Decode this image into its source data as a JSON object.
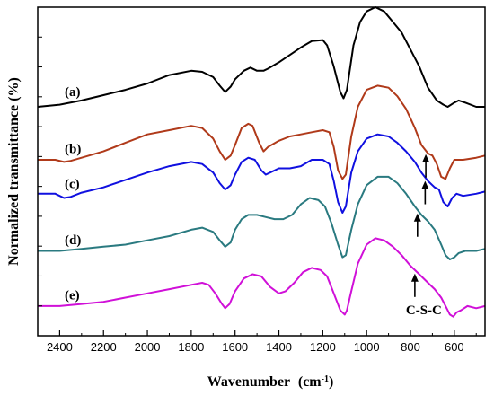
{
  "chart_data": {
    "type": "line",
    "title": "",
    "xlabel": "Wavenumber",
    "xlabel_unit": "(cm",
    "xlabel_unit_sup": "-1",
    "xlabel_unit_close": ")",
    "ylabel": "Normalized transmittance (%)",
    "xlim": [
      2500,
      460
    ],
    "x_reversed": true,
    "x_ticks": [
      2400,
      2200,
      2000,
      1800,
      1600,
      1400,
      1200,
      1000,
      800,
      600
    ],
    "y_ticks_labeled": false,
    "grid": false,
    "legend": "none",
    "series": [
      {
        "name": "(a)",
        "color": "#000000",
        "points": [
          [
            2500,
            0.13
          ],
          [
            2400,
            0.14
          ],
          [
            2300,
            0.16
          ],
          [
            2200,
            0.185
          ],
          [
            2100,
            0.21
          ],
          [
            2000,
            0.24
          ],
          [
            1900,
            0.28
          ],
          [
            1800,
            0.3
          ],
          [
            1750,
            0.295
          ],
          [
            1700,
            0.27
          ],
          [
            1670,
            0.23
          ],
          [
            1645,
            0.2
          ],
          [
            1620,
            0.225
          ],
          [
            1600,
            0.26
          ],
          [
            1560,
            0.3
          ],
          [
            1530,
            0.315
          ],
          [
            1500,
            0.3
          ],
          [
            1470,
            0.3
          ],
          [
            1450,
            0.31
          ],
          [
            1400,
            0.34
          ],
          [
            1300,
            0.41
          ],
          [
            1250,
            0.44
          ],
          [
            1200,
            0.445
          ],
          [
            1180,
            0.42
          ],
          [
            1150,
            0.32
          ],
          [
            1120,
            0.2
          ],
          [
            1105,
            0.17
          ],
          [
            1090,
            0.21
          ],
          [
            1060,
            0.42
          ],
          [
            1030,
            0.53
          ],
          [
            1000,
            0.58
          ],
          [
            960,
            0.6
          ],
          [
            920,
            0.58
          ],
          [
            880,
            0.53
          ],
          [
            840,
            0.48
          ],
          [
            800,
            0.4
          ],
          [
            760,
            0.32
          ],
          [
            720,
            0.22
          ],
          [
            680,
            0.16
          ],
          [
            650,
            0.14
          ],
          [
            630,
            0.13
          ],
          [
            600,
            0.15
          ],
          [
            580,
            0.16
          ],
          [
            550,
            0.15
          ],
          [
            500,
            0.13
          ],
          [
            460,
            0.13
          ]
        ]
      },
      {
        "name": "(b)",
        "color": "#b03a1a",
        "points": [
          [
            2500,
            0.13
          ],
          [
            2420,
            0.13
          ],
          [
            2380,
            0.12
          ],
          [
            2350,
            0.125
          ],
          [
            2300,
            0.14
          ],
          [
            2200,
            0.17
          ],
          [
            2100,
            0.21
          ],
          [
            2000,
            0.25
          ],
          [
            1900,
            0.27
          ],
          [
            1800,
            0.29
          ],
          [
            1750,
            0.28
          ],
          [
            1700,
            0.23
          ],
          [
            1670,
            0.17
          ],
          [
            1645,
            0.13
          ],
          [
            1620,
            0.15
          ],
          [
            1600,
            0.2
          ],
          [
            1570,
            0.28
          ],
          [
            1540,
            0.3
          ],
          [
            1520,
            0.29
          ],
          [
            1490,
            0.21
          ],
          [
            1470,
            0.17
          ],
          [
            1450,
            0.19
          ],
          [
            1400,
            0.22
          ],
          [
            1350,
            0.24
          ],
          [
            1300,
            0.25
          ],
          [
            1250,
            0.26
          ],
          [
            1200,
            0.27
          ],
          [
            1170,
            0.26
          ],
          [
            1150,
            0.19
          ],
          [
            1130,
            0.08
          ],
          [
            1110,
            0.04
          ],
          [
            1095,
            0.06
          ],
          [
            1070,
            0.24
          ],
          [
            1040,
            0.38
          ],
          [
            1000,
            0.46
          ],
          [
            950,
            0.48
          ],
          [
            900,
            0.47
          ],
          [
            860,
            0.43
          ],
          [
            820,
            0.37
          ],
          [
            780,
            0.28
          ],
          [
            750,
            0.2
          ],
          [
            720,
            0.16
          ],
          [
            700,
            0.15
          ],
          [
            680,
            0.11
          ],
          [
            660,
            0.05
          ],
          [
            640,
            0.04
          ],
          [
            620,
            0.09
          ],
          [
            600,
            0.13
          ],
          [
            560,
            0.13
          ],
          [
            500,
            0.14
          ],
          [
            460,
            0.15
          ]
        ]
      },
      {
        "name": "(c)",
        "color": "#1010e0",
        "points": [
          [
            2500,
            0.12
          ],
          [
            2420,
            0.12
          ],
          [
            2380,
            0.1
          ],
          [
            2350,
            0.105
          ],
          [
            2300,
            0.125
          ],
          [
            2200,
            0.15
          ],
          [
            2100,
            0.185
          ],
          [
            2000,
            0.22
          ],
          [
            1900,
            0.25
          ],
          [
            1800,
            0.27
          ],
          [
            1750,
            0.26
          ],
          [
            1700,
            0.22
          ],
          [
            1670,
            0.17
          ],
          [
            1645,
            0.14
          ],
          [
            1620,
            0.16
          ],
          [
            1600,
            0.21
          ],
          [
            1570,
            0.27
          ],
          [
            1540,
            0.29
          ],
          [
            1510,
            0.28
          ],
          [
            1480,
            0.23
          ],
          [
            1460,
            0.21
          ],
          [
            1440,
            0.22
          ],
          [
            1400,
            0.24
          ],
          [
            1350,
            0.24
          ],
          [
            1300,
            0.25
          ],
          [
            1250,
            0.28
          ],
          [
            1200,
            0.28
          ],
          [
            1170,
            0.26
          ],
          [
            1150,
            0.18
          ],
          [
            1130,
            0.08
          ],
          [
            1110,
            0.03
          ],
          [
            1095,
            0.06
          ],
          [
            1070,
            0.22
          ],
          [
            1040,
            0.32
          ],
          [
            1000,
            0.38
          ],
          [
            950,
            0.4
          ],
          [
            900,
            0.39
          ],
          [
            860,
            0.36
          ],
          [
            820,
            0.32
          ],
          [
            780,
            0.27
          ],
          [
            750,
            0.22
          ],
          [
            720,
            0.18
          ],
          [
            690,
            0.15
          ],
          [
            670,
            0.14
          ],
          [
            650,
            0.08
          ],
          [
            630,
            0.06
          ],
          [
            610,
            0.1
          ],
          [
            590,
            0.12
          ],
          [
            560,
            0.11
          ],
          [
            500,
            0.12
          ],
          [
            460,
            0.13
          ]
        ]
      },
      {
        "name": "(d)",
        "color": "#2a7a80",
        "points": [
          [
            2500,
            0.05
          ],
          [
            2400,
            0.05
          ],
          [
            2300,
            0.06
          ],
          [
            2200,
            0.07
          ],
          [
            2100,
            0.08
          ],
          [
            2000,
            0.1
          ],
          [
            1900,
            0.12
          ],
          [
            1800,
            0.15
          ],
          [
            1750,
            0.16
          ],
          [
            1700,
            0.14
          ],
          [
            1670,
            0.1
          ],
          [
            1645,
            0.07
          ],
          [
            1620,
            0.09
          ],
          [
            1600,
            0.15
          ],
          [
            1570,
            0.2
          ],
          [
            1540,
            0.22
          ],
          [
            1500,
            0.22
          ],
          [
            1460,
            0.21
          ],
          [
            1420,
            0.2
          ],
          [
            1380,
            0.2
          ],
          [
            1340,
            0.22
          ],
          [
            1300,
            0.27
          ],
          [
            1260,
            0.3
          ],
          [
            1220,
            0.29
          ],
          [
            1190,
            0.26
          ],
          [
            1160,
            0.18
          ],
          [
            1130,
            0.08
          ],
          [
            1110,
            0.02
          ],
          [
            1095,
            0.03
          ],
          [
            1070,
            0.15
          ],
          [
            1040,
            0.27
          ],
          [
            1000,
            0.36
          ],
          [
            950,
            0.4
          ],
          [
            900,
            0.4
          ],
          [
            860,
            0.37
          ],
          [
            820,
            0.32
          ],
          [
            780,
            0.26
          ],
          [
            750,
            0.22
          ],
          [
            720,
            0.19
          ],
          [
            690,
            0.15
          ],
          [
            660,
            0.08
          ],
          [
            640,
            0.03
          ],
          [
            620,
            0.01
          ],
          [
            600,
            0.02
          ],
          [
            580,
            0.04
          ],
          [
            550,
            0.05
          ],
          [
            500,
            0.05
          ],
          [
            460,
            0.06
          ]
        ]
      },
      {
        "name": "(e)",
        "color": "#d010d8",
        "points": [
          [
            2500,
            0.02
          ],
          [
            2400,
            0.02
          ],
          [
            2300,
            0.03
          ],
          [
            2200,
            0.04
          ],
          [
            2100,
            0.06
          ],
          [
            2000,
            0.08
          ],
          [
            1900,
            0.1
          ],
          [
            1800,
            0.12
          ],
          [
            1750,
            0.13
          ],
          [
            1720,
            0.12
          ],
          [
            1690,
            0.08
          ],
          [
            1660,
            0.03
          ],
          [
            1645,
            0.01
          ],
          [
            1625,
            0.03
          ],
          [
            1600,
            0.09
          ],
          [
            1560,
            0.15
          ],
          [
            1520,
            0.17
          ],
          [
            1480,
            0.16
          ],
          [
            1440,
            0.11
          ],
          [
            1400,
            0.08
          ],
          [
            1370,
            0.09
          ],
          [
            1330,
            0.13
          ],
          [
            1290,
            0.18
          ],
          [
            1250,
            0.2
          ],
          [
            1210,
            0.19
          ],
          [
            1180,
            0.16
          ],
          [
            1150,
            0.08
          ],
          [
            1120,
            0.0
          ],
          [
            1100,
            -0.02
          ],
          [
            1090,
            0.0
          ],
          [
            1070,
            0.09
          ],
          [
            1040,
            0.22
          ],
          [
            1000,
            0.31
          ],
          [
            960,
            0.34
          ],
          [
            920,
            0.33
          ],
          [
            880,
            0.3
          ],
          [
            840,
            0.26
          ],
          [
            800,
            0.21
          ],
          [
            760,
            0.17
          ],
          [
            720,
            0.13
          ],
          [
            690,
            0.1
          ],
          [
            660,
            0.06
          ],
          [
            640,
            0.02
          ],
          [
            620,
            -0.02
          ],
          [
            605,
            -0.03
          ],
          [
            590,
            -0.01
          ],
          [
            570,
            0.0
          ],
          [
            540,
            0.02
          ],
          [
            500,
            0.01
          ],
          [
            460,
            0.02
          ]
        ]
      }
    ],
    "offsets": [
      0.95,
      0.7,
      0.55,
      0.35,
      0.12
    ],
    "annotations": [
      {
        "type": "arrow",
        "x": 730,
        "series": 1
      },
      {
        "type": "arrow",
        "x": 733,
        "series": 2
      },
      {
        "type": "arrow",
        "x": 768,
        "series": 3
      },
      {
        "type": "arrow",
        "x": 780,
        "series": 4,
        "label": "C-S-C"
      }
    ]
  }
}
